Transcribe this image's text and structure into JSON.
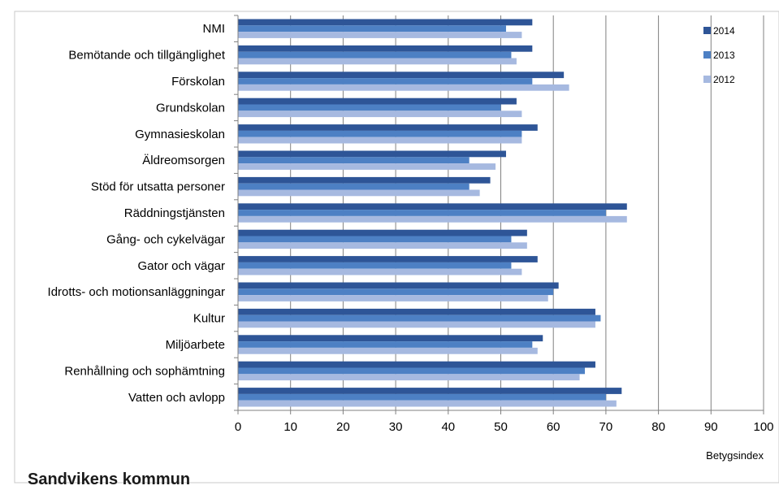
{
  "footer": {
    "title": "Sandvikens kommun"
  },
  "chart_data": {
    "type": "bar",
    "orientation": "horizontal",
    "xlabel": "Betygsindex",
    "xlim": [
      0,
      100
    ],
    "xticks": [
      0,
      10,
      20,
      30,
      40,
      50,
      60,
      70,
      80,
      90,
      100
    ],
    "grid": true,
    "legend_position": "top-right",
    "categories": [
      "NMI",
      "Bemötande och tillgänglighet",
      "Förskolan",
      "Grundskolan",
      "Gymnasieskolan",
      "Äldreomsorgen",
      "Stöd för utsatta personer",
      "Räddningstjänsten",
      "Gång- och cykelvägar",
      "Gator och vägar",
      "Idrotts- och motionsanläggningar",
      "Kultur",
      "Miljöarbete",
      "Renhållning och sophämtning",
      "Vatten och avlopp"
    ],
    "series": [
      {
        "name": "2014",
        "color": "#2e5597",
        "values": [
          56,
          56,
          62,
          53,
          57,
          51,
          48,
          74,
          55,
          57,
          61,
          68,
          58,
          68,
          73
        ]
      },
      {
        "name": "2013",
        "color": "#4d80c4",
        "values": [
          51,
          52,
          56,
          50,
          54,
          44,
          44,
          70,
          52,
          52,
          60,
          69,
          56,
          66,
          70
        ]
      },
      {
        "name": "2012",
        "color": "#a6b9e0",
        "values": [
          54,
          53,
          63,
          54,
          54,
          49,
          46,
          74,
          55,
          54,
          59,
          68,
          57,
          65,
          72
        ]
      }
    ]
  }
}
